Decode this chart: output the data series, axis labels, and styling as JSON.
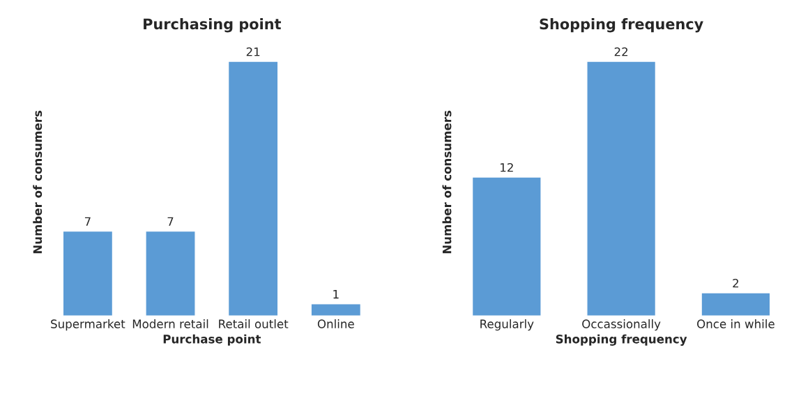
{
  "chart_data": [
    {
      "type": "bar",
      "title": "Purchasing point",
      "xlabel": "Purchase point",
      "ylabel": "Number of consumers",
      "categories": [
        "Supermarket",
        "Modern retail",
        "Retail outlet",
        "Online"
      ],
      "values": [
        7,
        7,
        21,
        1
      ],
      "color": "#5b9bd5",
      "data_labels": true,
      "tick_labels": "x"
    },
    {
      "type": "bar",
      "title": "Shopping frequency",
      "xlabel": "Shopping frequency",
      "ylabel": "Number of consumers",
      "categories": [
        "Regularly",
        "Occassionally",
        "Once in while"
      ],
      "values": [
        12,
        22,
        2
      ],
      "color": "#5b9bd5",
      "data_labels": true,
      "tick_labels": "x"
    }
  ]
}
